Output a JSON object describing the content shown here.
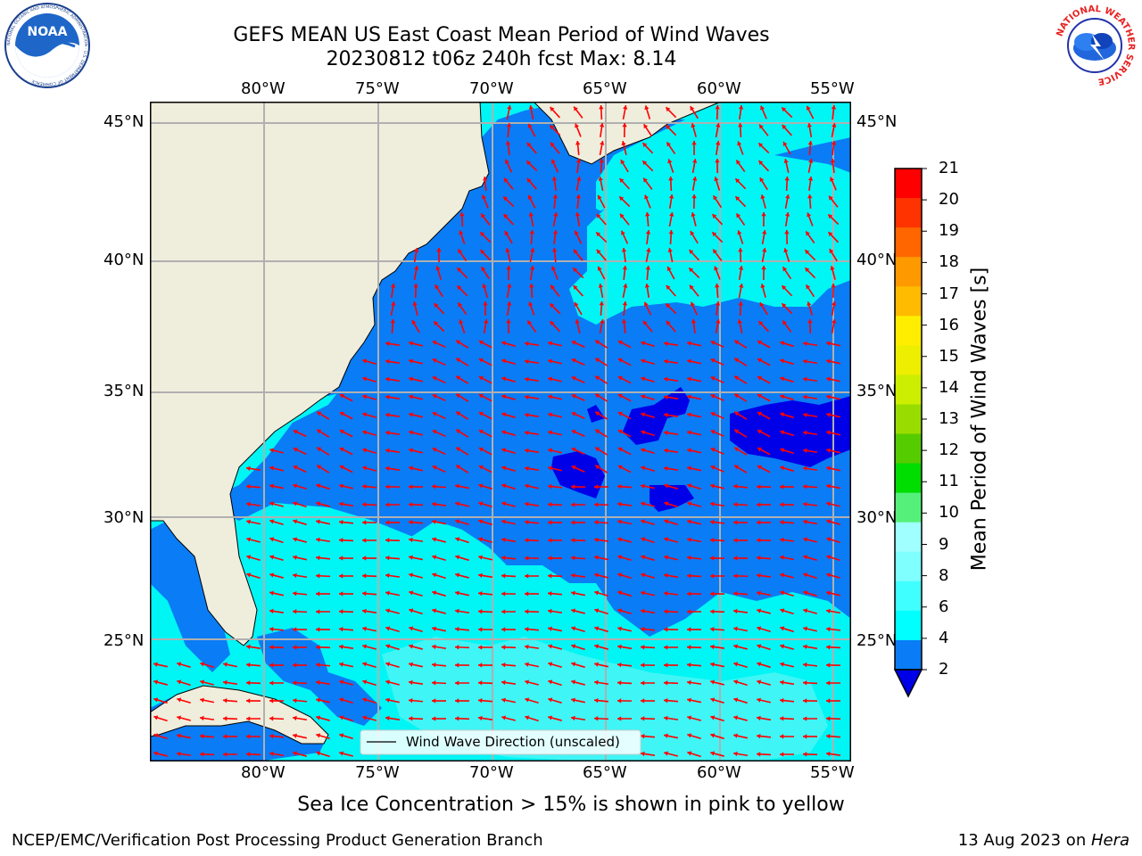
{
  "title": {
    "line1": "GEFS MEAN US East Coast Mean Period of Wind Waves",
    "line2": "20230812 t06z 240h fcst   Max: 8.14"
  },
  "logos": {
    "left": {
      "name": "noaa-logo",
      "text": "NOAA",
      "ring_text": "NATIONAL OCEANIC AND ATMOSPHERIC ADMINISTRATION · U.S. DEPARTMENT OF COMMERCE"
    },
    "right": {
      "name": "nws-logo",
      "ring_text": "NATIONAL WEATHER SERVICE"
    }
  },
  "map": {
    "lon_labels": [
      "80°W",
      "75°W",
      "70°W",
      "65°W",
      "60°W",
      "55°W"
    ],
    "lat_labels": [
      "45°N",
      "40°N",
      "35°N",
      "30°N",
      "25°N"
    ],
    "lon_range": [
      -85,
      -54.3
    ],
    "lat_range": [
      20.5,
      45.8
    ],
    "land_color": "#efeddc",
    "grid_color": "#b0b0b0",
    "arrow_color": "#ff0000",
    "legend_text": "Wind Wave Direction (unscaled)"
  },
  "colorbar": {
    "label": "Mean Period of Wind Waves [s]",
    "ticks": [
      "2",
      "4",
      "6",
      "8",
      "9",
      "10",
      "11",
      "12",
      "13",
      "14",
      "15",
      "16",
      "17",
      "18",
      "19",
      "20",
      "21"
    ],
    "extend": "min",
    "under_color": "#0000e8",
    "colors": [
      "#0a7cf5",
      "#00f5f5",
      "#40f5f5",
      "#80f5f5",
      "#a0ffff",
      "#52f27c",
      "#1fe01f",
      "#00cc00",
      "#66dd00",
      "#ccee00",
      "#ddee00",
      "#eeee00",
      "#ffee00",
      "#ffcc00",
      "#ff9900",
      "#ff6600",
      "#ff3300",
      "#ff0000"
    ]
  },
  "sea_ice_note": "Sea Ice Concentration > 15% is shown in pink to yellow",
  "footer": {
    "left": "NCEP/EMC/Verification Post Processing Product Generation Branch",
    "right_prefix": "13 Aug 2023 on ",
    "right_host": "Hera"
  }
}
